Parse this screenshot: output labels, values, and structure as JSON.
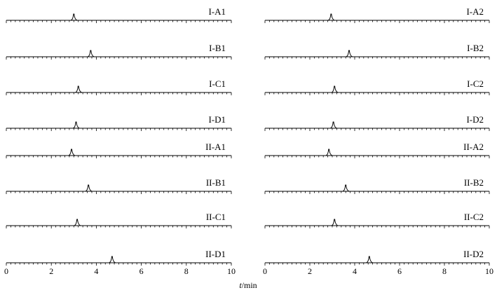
{
  "chart_data": {
    "type": "line",
    "xlabel_italic": "t",
    "xlabel_rest": "/min",
    "xlim": [
      0,
      10
    ],
    "xticks": [
      "0",
      "2",
      "4",
      "6",
      "8",
      "10"
    ],
    "panels": [
      {
        "name": "left",
        "traces": [
          {
            "label": "I-A1",
            "peak_time": 3.0,
            "peak_height": 0.6
          },
          {
            "label": "I-B1",
            "peak_time": 3.75,
            "peak_height": 0.6
          },
          {
            "label": "I-C1",
            "peak_time": 3.2,
            "peak_height": 0.6
          },
          {
            "label": "I-D1",
            "peak_time": 3.1,
            "peak_height": 0.6
          },
          {
            "label": "II-A1",
            "peak_time": 2.9,
            "peak_height": 0.6
          },
          {
            "label": "II-B1",
            "peak_time": 3.65,
            "peak_height": 0.6
          },
          {
            "label": "II-C1",
            "peak_time": 3.15,
            "peak_height": 0.6
          },
          {
            "label": "II-D1",
            "peak_time": 4.7,
            "peak_height": 0.6
          }
        ]
      },
      {
        "name": "right",
        "traces": [
          {
            "label": "I-A2",
            "peak_time": 2.95,
            "peak_height": 0.6
          },
          {
            "label": "I-B2",
            "peak_time": 3.75,
            "peak_height": 0.6
          },
          {
            "label": "I-C2",
            "peak_time": 3.1,
            "peak_height": 0.6
          },
          {
            "label": "I-D2",
            "peak_time": 3.05,
            "peak_height": 0.6
          },
          {
            "label": "II-A2",
            "peak_time": 2.85,
            "peak_height": 0.6
          },
          {
            "label": "II-B2",
            "peak_time": 3.6,
            "peak_height": 0.6
          },
          {
            "label": "II-C2",
            "peak_time": 3.1,
            "peak_height": 0.6
          },
          {
            "label": "II-D2",
            "peak_time": 4.65,
            "peak_height": 0.6
          }
        ]
      }
    ]
  }
}
